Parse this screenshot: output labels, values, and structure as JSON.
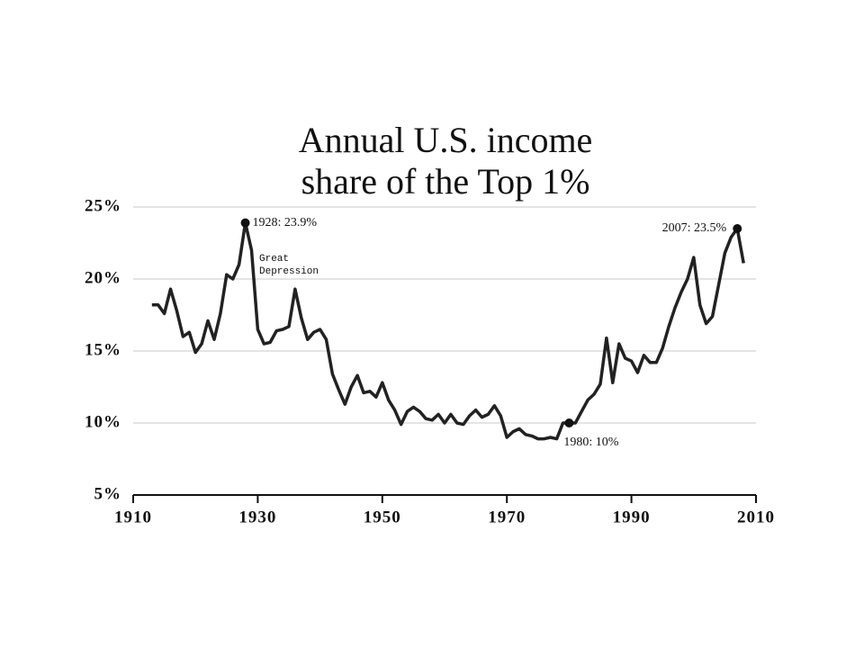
{
  "chart_data": {
    "type": "line",
    "title": [
      "Annual U.S. income",
      "share of the Top 1%"
    ],
    "x": [
      1913,
      1914,
      1915,
      1916,
      1917,
      1918,
      1919,
      1920,
      1921,
      1922,
      1923,
      1924,
      1925,
      1926,
      1927,
      1928,
      1929,
      1930,
      1931,
      1932,
      1933,
      1934,
      1935,
      1936,
      1937,
      1938,
      1939,
      1940,
      1941,
      1942,
      1943,
      1944,
      1945,
      1946,
      1947,
      1948,
      1949,
      1950,
      1951,
      1952,
      1953,
      1954,
      1955,
      1956,
      1957,
      1958,
      1959,
      1960,
      1961,
      1962,
      1963,
      1964,
      1965,
      1966,
      1967,
      1968,
      1969,
      1970,
      1971,
      1972,
      1973,
      1974,
      1975,
      1976,
      1977,
      1978,
      1979,
      1980,
      1981,
      1982,
      1983,
      1984,
      1985,
      1986,
      1987,
      1988,
      1989,
      1990,
      1991,
      1992,
      1993,
      1994,
      1995,
      1996,
      1997,
      1998,
      1999,
      2000,
      2001,
      2002,
      2003,
      2004,
      2005,
      2006,
      2007,
      2008
    ],
    "values": [
      18.2,
      18.2,
      17.6,
      19.3,
      17.8,
      16.0,
      16.3,
      14.9,
      15.5,
      17.1,
      15.8,
      17.6,
      20.3,
      20.0,
      21.0,
      23.9,
      22.0,
      16.5,
      15.5,
      15.6,
      16.4,
      16.5,
      16.7,
      19.3,
      17.3,
      15.8,
      16.3,
      16.5,
      15.8,
      13.4,
      12.3,
      11.3,
      12.5,
      13.3,
      12.1,
      12.2,
      11.8,
      12.8,
      11.6,
      10.9,
      9.9,
      10.8,
      11.1,
      10.8,
      10.3,
      10.2,
      10.6,
      10.0,
      10.6,
      10.0,
      9.9,
      10.5,
      10.9,
      10.4,
      10.6,
      11.2,
      10.5,
      9.0,
      9.4,
      9.6,
      9.2,
      9.1,
      8.9,
      8.9,
      9.0,
      8.9,
      10.0,
      10.0,
      10.0,
      10.8,
      11.6,
      12.0,
      12.7,
      15.9,
      12.8,
      15.5,
      14.5,
      14.3,
      13.5,
      14.7,
      14.2,
      14.2,
      15.2,
      16.7,
      18.0,
      19.1,
      20.0,
      21.5,
      18.2,
      16.9,
      17.4,
      19.6,
      21.8,
      22.9,
      23.5,
      21.1
    ],
    "color": "#222222",
    "xlim": [
      1910,
      2010
    ],
    "xticks": [
      1910,
      1930,
      1950,
      1970,
      1990,
      2010
    ],
    "ylim": [
      5,
      25
    ],
    "yticks": [
      {
        "value": 5,
        "label": "5%"
      },
      {
        "value": 10,
        "label": "10%"
      },
      {
        "value": 15,
        "label": "15%"
      },
      {
        "value": 20,
        "label": "20%"
      },
      {
        "value": 25,
        "label": "25%"
      }
    ],
    "grid": true,
    "annotations": [
      {
        "x": 1928,
        "y": 23.9,
        "label": "1928: 23.9%"
      },
      {
        "x": 2007,
        "y": 23.5,
        "label": "2007: 23.5%"
      },
      {
        "x": 1980,
        "y": 10,
        "label": "1980: 10%"
      }
    ],
    "text_annotations": [
      "Great",
      "Depression"
    ]
  }
}
